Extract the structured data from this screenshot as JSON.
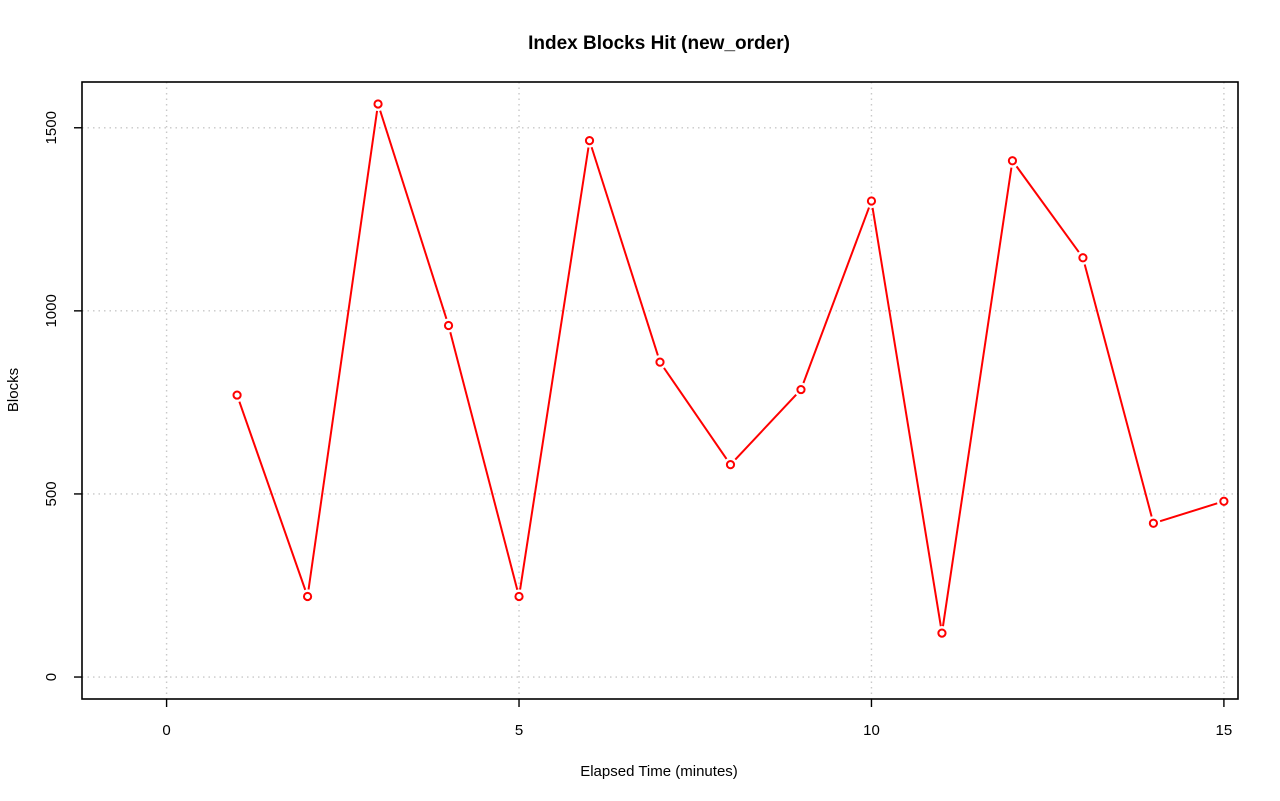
{
  "chart_data": {
    "type": "line",
    "title": "Index Blocks Hit (new_order)",
    "xlabel": "Elapsed Time (minutes)",
    "ylabel": "Blocks",
    "xlim": [
      -1.2,
      15.2
    ],
    "ylim": [
      -60,
      1625
    ],
    "xticks": [
      0,
      5,
      10,
      15
    ],
    "yticks": [
      0,
      500,
      1000,
      1500
    ],
    "grid": true,
    "series_color": "#ff0000",
    "x": [
      1,
      2,
      3,
      4,
      5,
      6,
      7,
      8,
      9,
      10,
      11,
      12,
      13,
      14,
      15
    ],
    "values": [
      770,
      220,
      1565,
      960,
      220,
      1465,
      860,
      580,
      785,
      1300,
      120,
      1410,
      1145,
      420,
      480
    ]
  }
}
